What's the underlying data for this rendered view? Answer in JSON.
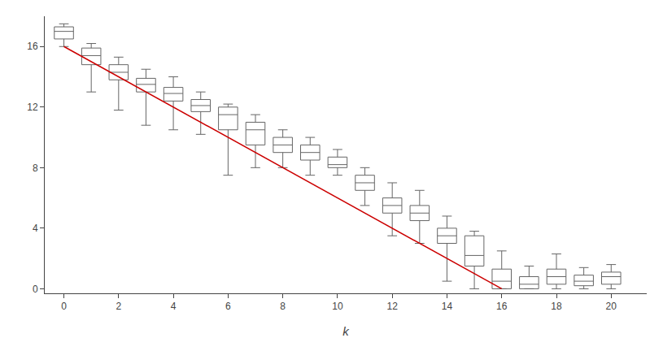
{
  "chart_data": {
    "type": "box",
    "xlabel": "k",
    "x": [
      0,
      1,
      2,
      3,
      4,
      5,
      6,
      7,
      8,
      9,
      10,
      11,
      12,
      13,
      14,
      15,
      16,
      17,
      18,
      19,
      20
    ],
    "series": [
      {
        "type": "box",
        "color": "#666666",
        "lower_whisker": [
          16.0,
          13.0,
          11.8,
          10.8,
          10.5,
          10.2,
          7.5,
          8.0,
          8.0,
          7.5,
          7.5,
          5.5,
          3.5,
          3.0,
          0.5,
          0.0,
          0.0,
          0.0,
          0.0,
          0.0,
          0.0
        ],
        "q1": [
          16.5,
          14.8,
          13.8,
          13.0,
          12.4,
          11.7,
          10.5,
          9.5,
          9.0,
          8.5,
          8.0,
          6.5,
          5.0,
          4.5,
          3.0,
          1.5,
          0.0,
          0.0,
          0.3,
          0.2,
          0.3
        ],
        "median": [
          17.0,
          15.4,
          14.3,
          13.5,
          12.9,
          12.1,
          11.5,
          10.5,
          9.5,
          9.0,
          8.2,
          7.0,
          5.5,
          5.0,
          3.5,
          2.2,
          0.5,
          0.3,
          0.8,
          0.5,
          0.8
        ],
        "q3": [
          17.3,
          15.9,
          14.8,
          13.9,
          13.3,
          12.5,
          12.0,
          11.0,
          10.0,
          9.5,
          8.7,
          7.5,
          6.0,
          5.5,
          4.0,
          3.5,
          1.3,
          0.8,
          1.3,
          0.9,
          1.1
        ],
        "upper_whisker": [
          17.5,
          16.2,
          15.3,
          14.5,
          14.0,
          13.0,
          12.2,
          11.5,
          10.5,
          10.0,
          9.2,
          8.0,
          7.0,
          6.5,
          4.8,
          3.8,
          2.5,
          1.5,
          2.3,
          1.4,
          1.6
        ]
      },
      {
        "type": "line",
        "color": "#cc0000",
        "x": [
          0,
          16
        ],
        "values": [
          16,
          0
        ]
      }
    ],
    "xlim": [
      -0.7,
      21.3
    ],
    "ylim": [
      -0.3,
      18.0
    ],
    "xticks": [
      0,
      2,
      4,
      6,
      8,
      10,
      12,
      14,
      16,
      18,
      20
    ],
    "yticks": [
      0,
      4,
      8,
      12,
      16
    ],
    "grid": false
  }
}
